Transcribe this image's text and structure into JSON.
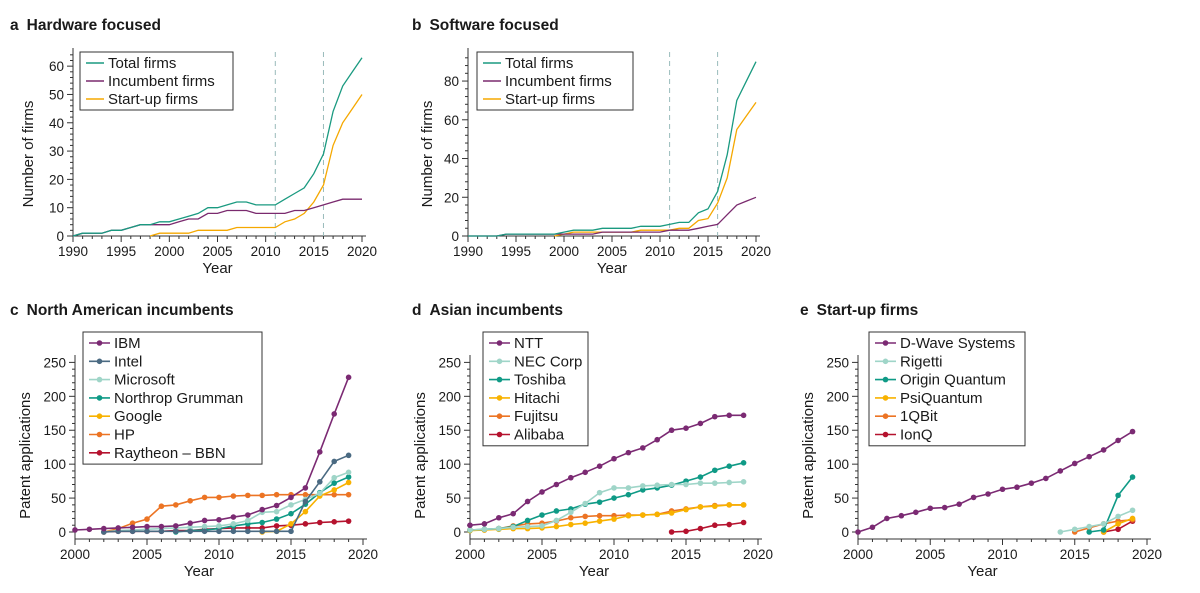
{
  "chart_data": [
    {
      "id": "a",
      "type": "line",
      "letter": "a",
      "title": "Hardware focused",
      "xlabel": "Year",
      "ylabel": "Number of firms",
      "xlim": [
        1990,
        2020
      ],
      "ylim": [
        0,
        65
      ],
      "xticks": [
        1990,
        1995,
        2000,
        2005,
        2010,
        2015,
        2020
      ],
      "yticks": [
        0,
        10,
        20,
        30,
        40,
        50,
        60
      ],
      "vlines": [
        2011,
        2016
      ],
      "markers": false,
      "legend": "top-left",
      "x": [
        1990,
        1991,
        1992,
        1993,
        1994,
        1995,
        1996,
        1997,
        1998,
        1999,
        2000,
        2001,
        2002,
        2003,
        2004,
        2005,
        2006,
        2007,
        2008,
        2009,
        2010,
        2011,
        2012,
        2013,
        2014,
        2015,
        2016,
        2017,
        2018,
        2019,
        2020
      ],
      "series": [
        {
          "name": "Total firms",
          "color": "#1a9a80",
          "values": [
            0,
            1,
            1,
            1,
            2,
            2,
            3,
            4,
            4,
            5,
            5,
            6,
            7,
            8,
            10,
            10,
            11,
            12,
            12,
            11,
            11,
            11,
            13,
            15,
            17,
            22,
            29,
            44,
            53,
            58,
            63
          ]
        },
        {
          "name": "Incumbent firms",
          "color": "#7a2a6e",
          "values": [
            0,
            1,
            1,
            1,
            2,
            2,
            3,
            4,
            4,
            4,
            4,
            5,
            6,
            6,
            8,
            8,
            9,
            9,
            9,
            8,
            8,
            8,
            8,
            9,
            9,
            10,
            11,
            12,
            13,
            13,
            13
          ]
        },
        {
          "name": "Start-up firms",
          "color": "#f5a800",
          "values": [
            null,
            null,
            null,
            null,
            null,
            null,
            null,
            null,
            0,
            1,
            1,
            1,
            1,
            2,
            2,
            2,
            2,
            3,
            3,
            3,
            3,
            3,
            5,
            6,
            8,
            12,
            18,
            32,
            40,
            45,
            50
          ]
        }
      ]
    },
    {
      "id": "b",
      "type": "line",
      "letter": "b",
      "title": "Software focused",
      "xlabel": "Year",
      "ylabel": "Number of firms",
      "xlim": [
        1990,
        2020
      ],
      "ylim": [
        0,
        95
      ],
      "xticks": [
        1990,
        1995,
        2000,
        2005,
        2010,
        2015,
        2020
      ],
      "yticks": [
        0,
        20,
        40,
        60,
        80
      ],
      "vlines": [
        2011,
        2016
      ],
      "markers": false,
      "legend": "top-left",
      "x": [
        1990,
        1991,
        1992,
        1993,
        1994,
        1995,
        1996,
        1997,
        1998,
        1999,
        2000,
        2001,
        2002,
        2003,
        2004,
        2005,
        2006,
        2007,
        2008,
        2009,
        2010,
        2011,
        2012,
        2013,
        2014,
        2015,
        2016,
        2017,
        2018,
        2019,
        2020
      ],
      "series": [
        {
          "name": "Total firms",
          "color": "#1a9a80",
          "values": [
            0,
            0,
            0,
            0,
            1,
            1,
            1,
            1,
            1,
            1,
            2,
            3,
            3,
            3,
            4,
            4,
            4,
            4,
            5,
            5,
            5,
            6,
            7,
            7,
            12,
            14,
            23,
            42,
            70,
            80,
            90
          ]
        },
        {
          "name": "Incumbent firms",
          "color": "#7a2a6e",
          "values": [
            0,
            0,
            0,
            0,
            1,
            1,
            1,
            1,
            1,
            1,
            1,
            1,
            1,
            1,
            2,
            2,
            2,
            2,
            2,
            2,
            2,
            3,
            3,
            3,
            4,
            5,
            6,
            11,
            16,
            18,
            20
          ]
        },
        {
          "name": "Start-up firms",
          "color": "#f5a800",
          "values": [
            null,
            null,
            null,
            null,
            null,
            null,
            null,
            null,
            null,
            0,
            1,
            2,
            2,
            2,
            2,
            2,
            2,
            2,
            3,
            3,
            3,
            3,
            4,
            4,
            8,
            9,
            17,
            30,
            55,
            62,
            69
          ]
        }
      ]
    },
    {
      "id": "c",
      "type": "line",
      "letter": "c",
      "title": "North American incumbents",
      "xlabel": "Year",
      "ylabel": "Patent applications",
      "xlim": [
        2000,
        2020
      ],
      "ylim": [
        0,
        255
      ],
      "xticks": [
        2000,
        2005,
        2010,
        2015,
        2020
      ],
      "yticks": [
        0,
        50,
        100,
        150,
        200,
        250
      ],
      "markers": true,
      "legend": "top-left",
      "x": [
        2000,
        2001,
        2002,
        2003,
        2004,
        2005,
        2006,
        2007,
        2008,
        2009,
        2010,
        2011,
        2012,
        2013,
        2014,
        2015,
        2016,
        2017,
        2018,
        2019
      ],
      "series": [
        {
          "name": "IBM",
          "color": "#7b2a73",
          "values": [
            3,
            4,
            5,
            6,
            7,
            8,
            8,
            9,
            13,
            17,
            18,
            22,
            25,
            33,
            39,
            51,
            65,
            118,
            174,
            228
          ]
        },
        {
          "name": "Intel",
          "color": "#4a6a82",
          "values": [
            null,
            null,
            0,
            1,
            1,
            1,
            1,
            1,
            1,
            1,
            1,
            1,
            1,
            1,
            1,
            1,
            45,
            74,
            104,
            113
          ]
        },
        {
          "name": "Microsoft",
          "color": "#9fd5c8",
          "values": [
            null,
            null,
            0,
            2,
            3,
            4,
            5,
            6,
            7,
            8,
            9,
            12,
            17,
            29,
            30,
            40,
            48,
            57,
            80,
            88
          ]
        },
        {
          "name": "Northrop Grumman",
          "color": "#0f9a86",
          "values": [
            null,
            null,
            null,
            null,
            null,
            null,
            null,
            0,
            2,
            3,
            5,
            9,
            12,
            14,
            19,
            27,
            41,
            58,
            72,
            81
          ]
        },
        {
          "name": "Google",
          "color": "#f8b200",
          "values": [
            null,
            null,
            null,
            null,
            null,
            null,
            null,
            null,
            null,
            null,
            null,
            null,
            null,
            0,
            1,
            12,
            30,
            53,
            62,
            73
          ]
        },
        {
          "name": "HP",
          "color": "#ec7424",
          "values": [
            null,
            null,
            0,
            5,
            13,
            19,
            38,
            40,
            46,
            51,
            51,
            53,
            54,
            54,
            55,
            55,
            55,
            55,
            55,
            55
          ]
        },
        {
          "name": "Raytheon – BBN",
          "color": "#b5122e",
          "values": [
            null,
            null,
            0,
            1,
            1,
            1,
            1,
            2,
            2,
            4,
            5,
            6,
            6,
            6,
            9,
            10,
            12,
            14,
            15,
            16
          ]
        }
      ]
    },
    {
      "id": "d",
      "type": "line",
      "letter": "d",
      "title": "Asian incumbents",
      "xlabel": "Year",
      "ylabel": "Patent applications",
      "xlim": [
        2000,
        2020
      ],
      "ylim": [
        0,
        255
      ],
      "xticks": [
        2000,
        2005,
        2010,
        2015,
        2020
      ],
      "yticks": [
        0,
        50,
        100,
        150,
        200,
        250
      ],
      "markers": true,
      "legend": "top-left",
      "x": [
        2000,
        2001,
        2002,
        2003,
        2004,
        2005,
        2006,
        2007,
        2008,
        2009,
        2010,
        2011,
        2012,
        2013,
        2014,
        2015,
        2016,
        2017,
        2018,
        2019
      ],
      "series": [
        {
          "name": "NTT",
          "color": "#7b2a73",
          "values": [
            10,
            12,
            21,
            27,
            45,
            59,
            70,
            80,
            88,
            97,
            108,
            117,
            124,
            136,
            150,
            153,
            160,
            170,
            172,
            172
          ]
        },
        {
          "name": "NEC Corp",
          "color": "#9fd5c8",
          "values": [
            3,
            4,
            5,
            7,
            8,
            9,
            17,
            29,
            42,
            58,
            65,
            65,
            68,
            69,
            70,
            70,
            72,
            72,
            73,
            74
          ]
        },
        {
          "name": "Toshiba",
          "color": "#0f9a86",
          "values": [
            3,
            4,
            5,
            8,
            17,
            25,
            31,
            34,
            41,
            44,
            50,
            55,
            62,
            65,
            69,
            75,
            81,
            91,
            97,
            102
          ]
        },
        {
          "name": "Hitachi",
          "color": "#f8b200",
          "values": [
            2,
            3,
            4,
            5,
            5,
            6,
            8,
            11,
            13,
            16,
            19,
            24,
            25,
            26,
            28,
            33,
            37,
            38,
            40,
            40
          ]
        },
        {
          "name": "Fujitsu",
          "color": "#ec7424",
          "values": [
            3,
            3,
            5,
            9,
            12,
            13,
            16,
            21,
            23,
            24,
            24,
            25,
            25,
            26,
            31,
            34,
            37,
            39,
            40,
            40
          ]
        },
        {
          "name": "Alibaba",
          "color": "#b5122e",
          "values": [
            null,
            null,
            null,
            null,
            null,
            null,
            null,
            null,
            null,
            null,
            null,
            null,
            null,
            null,
            0,
            1,
            5,
            10,
            11,
            14
          ]
        }
      ]
    },
    {
      "id": "e",
      "type": "line",
      "letter": "e",
      "title": "Start-up firms",
      "xlabel": "Year",
      "ylabel": "Patent applications",
      "xlim": [
        2000,
        2020
      ],
      "ylim": [
        0,
        255
      ],
      "xticks": [
        2000,
        2005,
        2010,
        2015,
        2020
      ],
      "yticks": [
        0,
        50,
        100,
        150,
        200,
        250
      ],
      "markers": true,
      "legend": "top-left",
      "x": [
        2000,
        2001,
        2002,
        2003,
        2004,
        2005,
        2006,
        2007,
        2008,
        2009,
        2010,
        2011,
        2012,
        2013,
        2014,
        2015,
        2016,
        2017,
        2018,
        2019
      ],
      "series": [
        {
          "name": "D-Wave Systems",
          "color": "#7b2a73",
          "values": [
            0,
            7,
            20,
            24,
            29,
            35,
            36,
            41,
            51,
            56,
            63,
            66,
            72,
            79,
            90,
            101,
            111,
            121,
            135,
            148
          ]
        },
        {
          "name": "Rigetti",
          "color": "#9fd5c8",
          "values": [
            null,
            null,
            null,
            null,
            null,
            null,
            null,
            null,
            null,
            null,
            null,
            null,
            null,
            null,
            0,
            4,
            8,
            12,
            23,
            32
          ]
        },
        {
          "name": "Origin Quantum",
          "color": "#0f9a86",
          "values": [
            null,
            null,
            null,
            null,
            null,
            null,
            null,
            null,
            null,
            null,
            null,
            null,
            null,
            null,
            null,
            null,
            0,
            3,
            54,
            81
          ]
        },
        {
          "name": "PsiQuantum",
          "color": "#f8b200",
          "values": [
            null,
            null,
            null,
            null,
            null,
            null,
            null,
            null,
            null,
            null,
            null,
            null,
            null,
            null,
            null,
            null,
            null,
            0,
            12,
            20
          ]
        },
        {
          "name": "1QBit",
          "color": "#ec7424",
          "values": [
            null,
            null,
            null,
            null,
            null,
            null,
            null,
            null,
            null,
            null,
            null,
            null,
            null,
            null,
            null,
            0,
            6,
            12,
            16,
            18
          ]
        },
        {
          "name": "IonQ",
          "color": "#b5122e",
          "values": [
            null,
            null,
            null,
            null,
            null,
            null,
            null,
            null,
            null,
            null,
            null,
            null,
            null,
            null,
            null,
            null,
            null,
            0,
            4,
            16
          ]
        }
      ]
    }
  ]
}
